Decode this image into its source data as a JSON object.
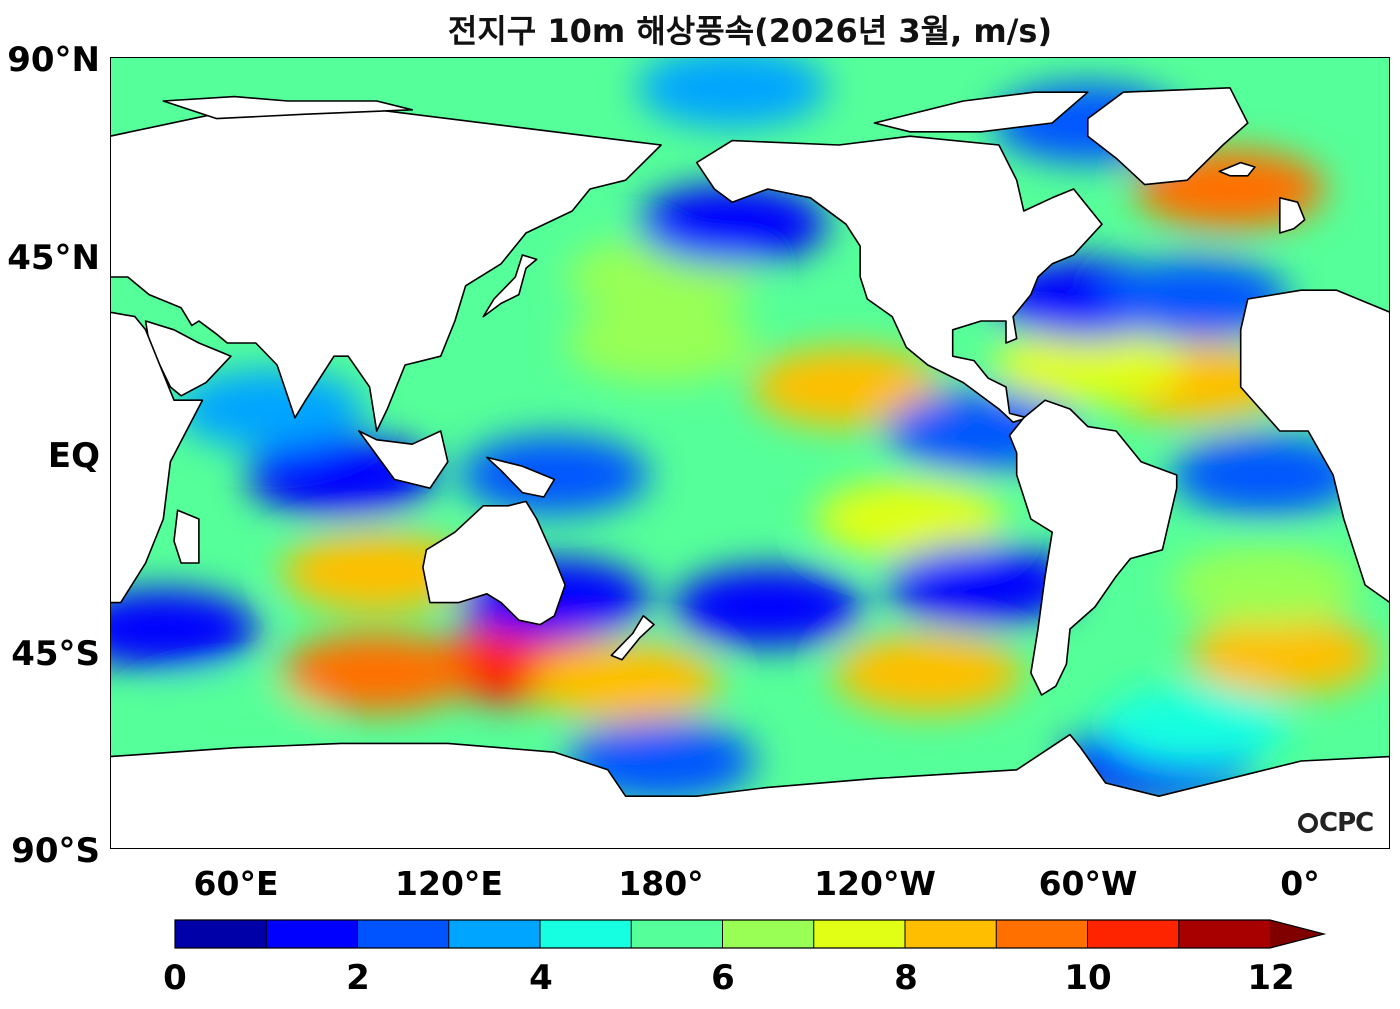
{
  "title": "전지구 10m 해상풍속(2026년 3월, m/s)",
  "logo_text": "CPC",
  "y_ticks": [
    "90°N",
    "45°N",
    "EQ",
    "45°S",
    "90°S"
  ],
  "x_ticks": [
    "60°E",
    "120°E",
    "180°",
    "120°W",
    "60°W",
    "0°"
  ],
  "colorbar": {
    "ticks": [
      "0",
      "2",
      "4",
      "6",
      "8",
      "10",
      "12"
    ],
    "colors": [
      "#0000a8",
      "#0000ff",
      "#0054ff",
      "#00a5ff",
      "#15ffe0",
      "#55ff99",
      "#99ff55",
      "#e0ff15",
      "#ffbf00",
      "#ff7000",
      "#ff2400",
      "#a80000"
    ],
    "extend_color": "#800000",
    "min": 0,
    "max": 12
  },
  "map": {
    "projection": "equirectangular",
    "lon_range": [
      25,
      385
    ],
    "lat_range": [
      -90,
      90
    ],
    "land_color": "#ffffff",
    "ocean_base_value": 5.5
  },
  "chart_data": {
    "type": "heatmap",
    "title": "전지구 10m 해상풍속(2026년 3월, m/s)",
    "unit": "m/s",
    "features": [
      {
        "lon": 140,
        "lat": -48,
        "value": 10.2
      },
      {
        "lon": 100,
        "lat": -50,
        "value": 9.6
      },
      {
        "lon": 170,
        "lat": -52,
        "value": 8.6
      },
      {
        "lon": 255,
        "lat": -50,
        "value": 8.6
      },
      {
        "lon": 355,
        "lat": -46,
        "value": 8.4
      },
      {
        "lon": 232,
        "lat": 15,
        "value": 8.6
      },
      {
        "lon": 330,
        "lat": 16,
        "value": 8.2
      },
      {
        "lon": 340,
        "lat": 60,
        "value": 9.0
      },
      {
        "lon": 100,
        "lat": -27,
        "value": 8.3
      },
      {
        "lon": 250,
        "lat": -15,
        "value": 7.6
      },
      {
        "lon": 180,
        "lat": 25,
        "value": 6.8
      },
      {
        "lon": 180,
        "lat": 40,
        "value": 6.2
      },
      {
        "lon": 300,
        "lat": 20,
        "value": 7.2
      },
      {
        "lon": 210,
        "lat": -35,
        "value": 1.2
      },
      {
        "lon": 270,
        "lat": -30,
        "value": 1.5
      },
      {
        "lon": 150,
        "lat": -33,
        "value": 1.8
      },
      {
        "lon": 300,
        "lat": 35,
        "value": 1.5
      },
      {
        "lon": 330,
        "lat": 35,
        "value": 2.0
      },
      {
        "lon": 200,
        "lat": 52,
        "value": 1.2
      },
      {
        "lon": 90,
        "lat": -5,
        "value": 1.5
      },
      {
        "lon": 320,
        "lat": -70,
        "value": 1.5
      },
      {
        "lon": 180,
        "lat": -70,
        "value": 2.0
      },
      {
        "lon": 150,
        "lat": -5,
        "value": 2.5
      },
      {
        "lon": 350,
        "lat": -5,
        "value": 2.8
      },
      {
        "lon": 350,
        "lat": -30,
        "value": 6.0
      },
      {
        "lon": 40,
        "lat": -40,
        "value": 1.0
      },
      {
        "lon": 270,
        "lat": 5,
        "value": 2.2
      },
      {
        "lon": 200,
        "lat": 83,
        "value": 3.0
      },
      {
        "lon": 300,
        "lat": 75,
        "value": 2.5
      },
      {
        "lon": 330,
        "lat": -62,
        "value": 4.0
      },
      {
        "lon": 60,
        "lat": -62,
        "value": 5.5
      },
      {
        "lon": 70,
        "lat": 10,
        "value": 3.0
      }
    ]
  }
}
